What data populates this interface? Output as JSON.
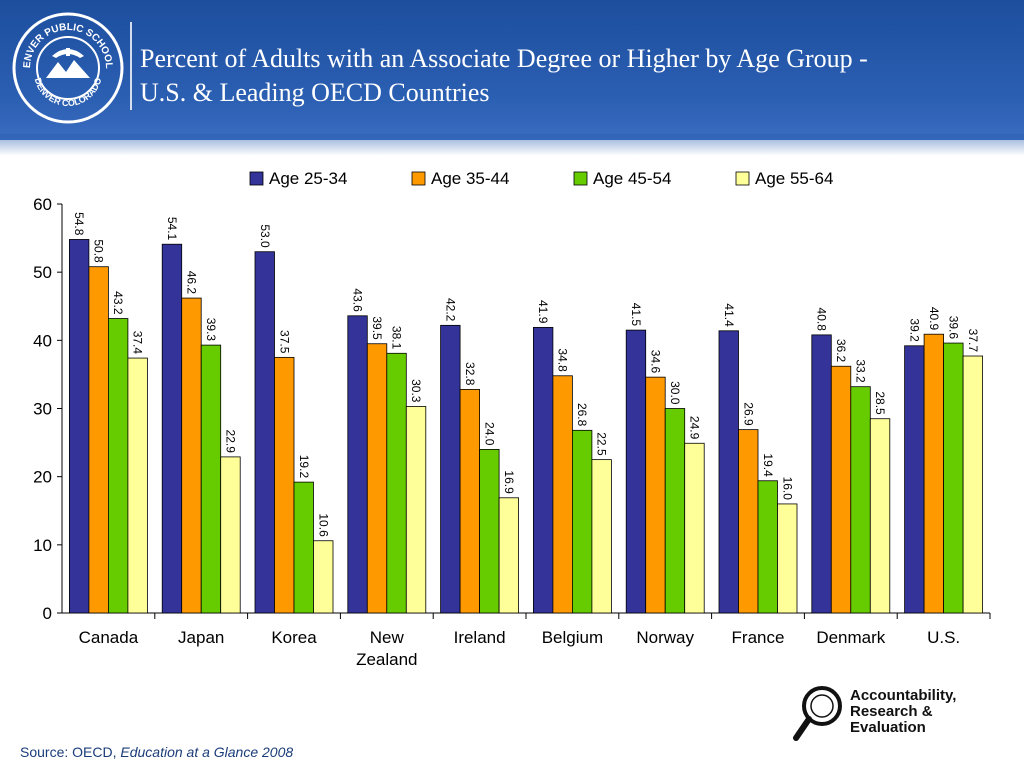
{
  "header": {
    "logo_text_top": "DENVER PUBLIC SCHOOLS",
    "logo_text_bottom": "DENVER COLORADO",
    "title_line1": "Percent of Adults with an Associate Degree or Higher by Age Group -",
    "title_line2": "U.S. & Leading OECD Countries"
  },
  "chart_data": {
    "type": "bar",
    "categories": [
      "Canada",
      "Japan",
      "Korea",
      "New Zealand",
      "Ireland",
      "Belgium",
      "Norway",
      "France",
      "Denmark",
      "U.S."
    ],
    "category_lines": [
      [
        "Canada"
      ],
      [
        "Japan"
      ],
      [
        "Korea"
      ],
      [
        "New",
        "Zealand"
      ],
      [
        "Ireland"
      ],
      [
        "Belgium"
      ],
      [
        "Norway"
      ],
      [
        "France"
      ],
      [
        "Denmark"
      ],
      [
        "U.S."
      ]
    ],
    "series": [
      {
        "name": "Age 25-34",
        "color": "#333399",
        "values": [
          54.8,
          54.1,
          53.0,
          43.6,
          42.2,
          41.9,
          41.5,
          41.4,
          40.8,
          39.2
        ]
      },
      {
        "name": "Age 35-44",
        "color": "#ff9900",
        "values": [
          50.8,
          46.2,
          37.5,
          39.5,
          32.8,
          34.8,
          34.6,
          26.9,
          36.2,
          40.9
        ]
      },
      {
        "name": "Age 45-54",
        "color": "#66cc00",
        "values": [
          43.2,
          39.3,
          19.2,
          38.1,
          24.0,
          26.8,
          30.0,
          19.4,
          33.2,
          39.6
        ]
      },
      {
        "name": "Age 55-64",
        "color": "#ffff99",
        "values": [
          37.4,
          22.9,
          10.6,
          30.3,
          16.9,
          22.5,
          24.9,
          16.0,
          28.5,
          37.7
        ]
      }
    ],
    "ylim": [
      0,
      60
    ],
    "yticks": [
      "0",
      "10",
      "20",
      "30",
      "40",
      "50",
      "60"
    ],
    "legend_position": "top",
    "grid": false
  },
  "footer": {
    "source_prefix": "Source: OECD, ",
    "source_title": "Education at a Glance 2008",
    "are_line1": "Accountability,",
    "are_line2": "Research &",
    "are_line3": "Evaluation"
  }
}
